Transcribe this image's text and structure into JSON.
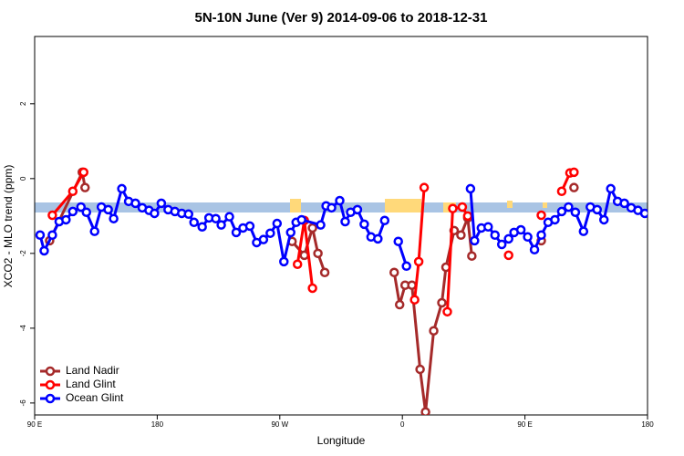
{
  "chart_data": {
    "type": "line",
    "title": "5N-10N June (Ver 9)   2014-09-06 to 2018-12-31",
    "x_label": "Longitude",
    "y_label": "XCO2 - MLO trend (ppm)",
    "xlim": [
      90,
      540
    ],
    "ylim": [
      -6.32,
      3.8
    ],
    "xticks": [
      {
        "value": 90,
        "label": "90 E"
      },
      180,
      {
        "value": 270,
        "label": "90 W"
      },
      {
        "value": 360,
        "label": "0"
      },
      {
        "value": 450,
        "label": "90 E"
      },
      {
        "value": 540,
        "label": "180"
      }
    ],
    "yticks": [
      -6,
      -4,
      -2,
      0,
      2
    ],
    "legend": "bottomleft",
    "series": [
      {
        "name": "Land Nadir",
        "color": "#a52a2a",
        "x": [
          101,
          125,
          127,
          null,
          279,
          288,
          294,
          298,
          303,
          null,
          354,
          358,
          362,
          367,
          373,
          377,
          383,
          389,
          392,
          398,
          403,
          408,
          411,
          null,
          462,
          null,
          486
        ],
        "values": [
          -1.66,
          0.17,
          -0.24,
          null,
          -1.68,
          -2.05,
          -1.32,
          -2.0,
          -2.51,
          null,
          -2.51,
          -3.37,
          -2.85,
          -2.85,
          -5.1,
          -6.24,
          -4.07,
          -3.32,
          -2.37,
          -1.39,
          -1.51,
          -1.05,
          -2.07,
          null,
          -1.66,
          null,
          -0.24
        ]
      },
      {
        "name": "Land Glint",
        "color": "#ff0000",
        "x": [
          103,
          118,
          126,
          null,
          283,
          288,
          294,
          null,
          369,
          372,
          376,
          null,
          393,
          397,
          404,
          408,
          null,
          438,
          null,
          462,
          null,
          477,
          483,
          486
        ],
        "values": [
          -0.98,
          -0.34,
          0.17,
          null,
          -2.29,
          -1.12,
          -2.93,
          null,
          -3.24,
          -2.22,
          -0.24,
          null,
          -3.56,
          -0.8,
          -0.76,
          -1.0,
          null,
          -2.05,
          null,
          -0.98,
          null,
          -0.34,
          0.15,
          0.17
        ]
      },
      {
        "name": "Ocean Glint",
        "color": "#0000ff",
        "x": [
          94,
          97,
          103,
          108,
          113,
          118,
          124,
          128,
          134,
          139,
          144,
          148,
          154,
          159,
          164,
          169,
          174,
          178,
          183,
          188,
          193,
          198,
          203,
          207,
          213,
          218,
          223,
          227,
          233,
          238,
          243,
          248,
          253,
          258,
          263,
          268,
          273,
          278,
          282,
          286,
          300,
          304,
          308,
          314,
          318,
          322,
          327,
          332,
          337,
          342,
          347,
          null,
          357,
          363,
          null,
          410,
          413,
          418,
          423,
          428,
          433,
          438,
          442,
          447,
          452,
          457,
          462,
          467,
          472,
          477,
          482,
          487,
          493,
          498,
          503,
          508,
          513,
          518,
          523,
          528,
          533,
          538
        ],
        "values": [
          -1.51,
          -1.93,
          -1.51,
          -1.15,
          -1.1,
          -0.88,
          -0.76,
          -0.9,
          -1.41,
          -0.76,
          -0.83,
          -1.07,
          -0.27,
          -0.61,
          -0.66,
          -0.78,
          -0.85,
          -0.93,
          -0.66,
          -0.83,
          -0.88,
          -0.93,
          -0.95,
          -1.17,
          -1.29,
          -1.05,
          -1.07,
          -1.24,
          -1.02,
          -1.44,
          -1.32,
          -1.27,
          -1.71,
          -1.63,
          -1.46,
          -1.2,
          -2.22,
          -1.44,
          -1.17,
          -1.1,
          -1.24,
          -0.73,
          -0.78,
          -0.59,
          -1.15,
          -0.9,
          -0.83,
          -1.22,
          -1.56,
          -1.61,
          -1.12,
          null,
          -1.68,
          -2.34,
          null,
          -0.27,
          -1.66,
          -1.32,
          -1.29,
          -1.51,
          -1.76,
          -1.61,
          -1.44,
          -1.37,
          -1.56,
          -1.9,
          -1.51,
          -1.17,
          -1.1,
          -0.88,
          -0.76,
          -0.9,
          -1.41,
          -0.76,
          -0.83,
          -1.1,
          -0.27,
          -0.61,
          -0.66,
          -0.78,
          -0.85,
          -0.93
        ]
      }
    ]
  }
}
